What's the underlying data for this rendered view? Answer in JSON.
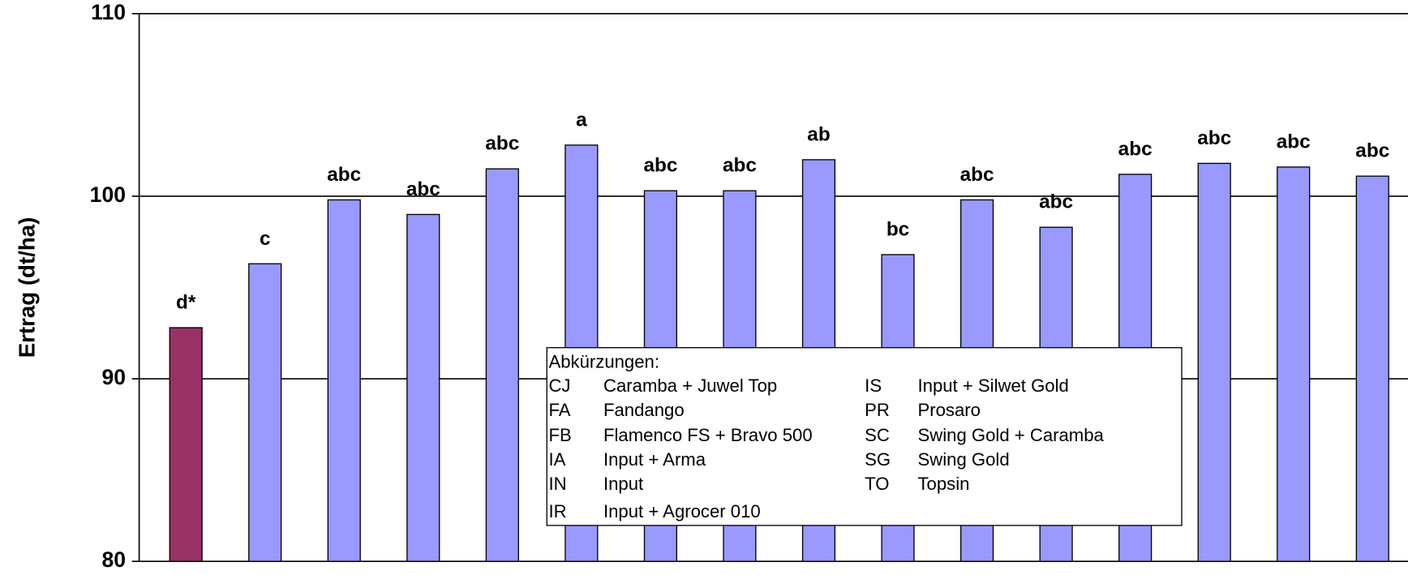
{
  "chart_data": {
    "type": "bar",
    "ylabel": "Ertrag (dt/ha)",
    "values": [
      92.8,
      96.3,
      99.8,
      99.0,
      101.5,
      102.8,
      100.3,
      100.3,
      102.0,
      96.8,
      99.8,
      98.3,
      101.2,
      101.8,
      101.6,
      101.1
    ],
    "significance_labels": [
      "d*",
      "c",
      "abc",
      "abc",
      "abc",
      "a",
      "abc",
      "abc",
      "ab",
      "bc",
      "abc",
      "abc",
      "abc",
      "abc",
      "abc",
      "abc"
    ],
    "colors": [
      "#993366",
      "#9999ff",
      "#9999ff",
      "#9999ff",
      "#9999ff",
      "#9999ff",
      "#9999ff",
      "#9999ff",
      "#9999ff",
      "#9999ff",
      "#9999ff",
      "#9999ff",
      "#9999ff",
      "#9999ff",
      "#9999ff",
      "#9999ff"
    ],
    "ylim": [
      80,
      110
    ],
    "yticks": [
      80,
      90,
      100,
      110
    ],
    "grid": true,
    "abbreviations": {
      "title": "Abkürzungen:",
      "left": [
        {
          "code": "CJ",
          "name": "Caramba + Juwel Top"
        },
        {
          "code": "FA",
          "name": "Fandango"
        },
        {
          "code": "FB",
          "name": "Flamenco FS + Bravo 500"
        },
        {
          "code": "IA",
          "name": "Input + Arma"
        },
        {
          "code": "IN",
          "name": "Input"
        },
        {
          "code": "IR",
          "name": "Input + Agrocer 010"
        }
      ],
      "right": [
        {
          "code": "IS",
          "name": "Input + Silwet Gold"
        },
        {
          "code": "PR",
          "name": "Prosaro"
        },
        {
          "code": "SC",
          "name": "Swing Gold + Caramba"
        },
        {
          "code": "SG",
          "name": "Swing Gold"
        },
        {
          "code": "TO",
          "name": "Topsin"
        }
      ]
    }
  }
}
